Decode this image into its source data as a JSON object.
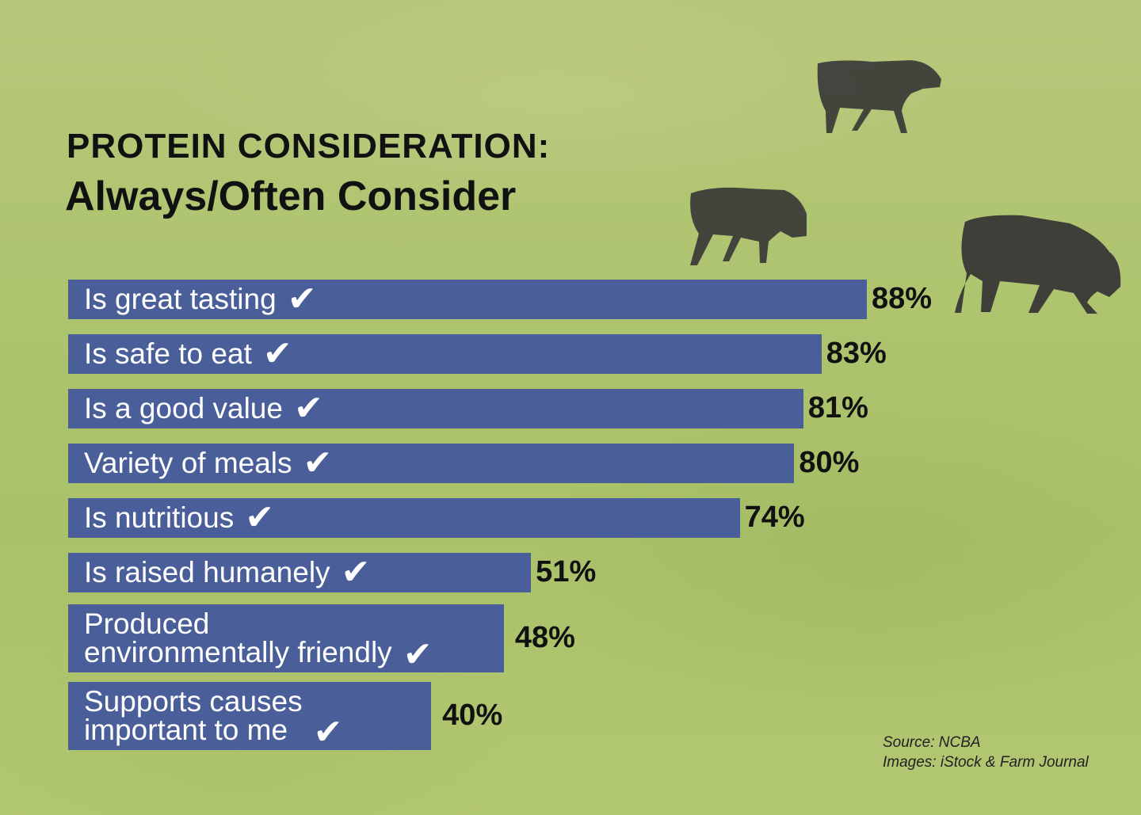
{
  "title_line1": "PROTEIN CONSIDERATION:",
  "title_line2": "Always/Often Consider",
  "chart_data": {
    "type": "bar",
    "orientation": "horizontal",
    "categories": [
      "Is great tasting",
      "Is safe to eat",
      "Is a good value",
      "Variety of meals",
      "Is nutritious",
      "Is raised humanely",
      "Produced\nenvironmentally friendly",
      "Supports causes\nimportant to me"
    ],
    "values": [
      88,
      83,
      81,
      80,
      74,
      51,
      48,
      40
    ],
    "value_labels": [
      "88%",
      "83%",
      "81%",
      "80%",
      "74%",
      "51%",
      "48%",
      "40%"
    ],
    "unit": "%",
    "bar_color": "#4a5f9a",
    "xlim": [
      0,
      100
    ]
  },
  "source_line1": "Source: NCBA",
  "source_line2": "Images: iStock & Farm Journal",
  "background_color": "#aec46f"
}
